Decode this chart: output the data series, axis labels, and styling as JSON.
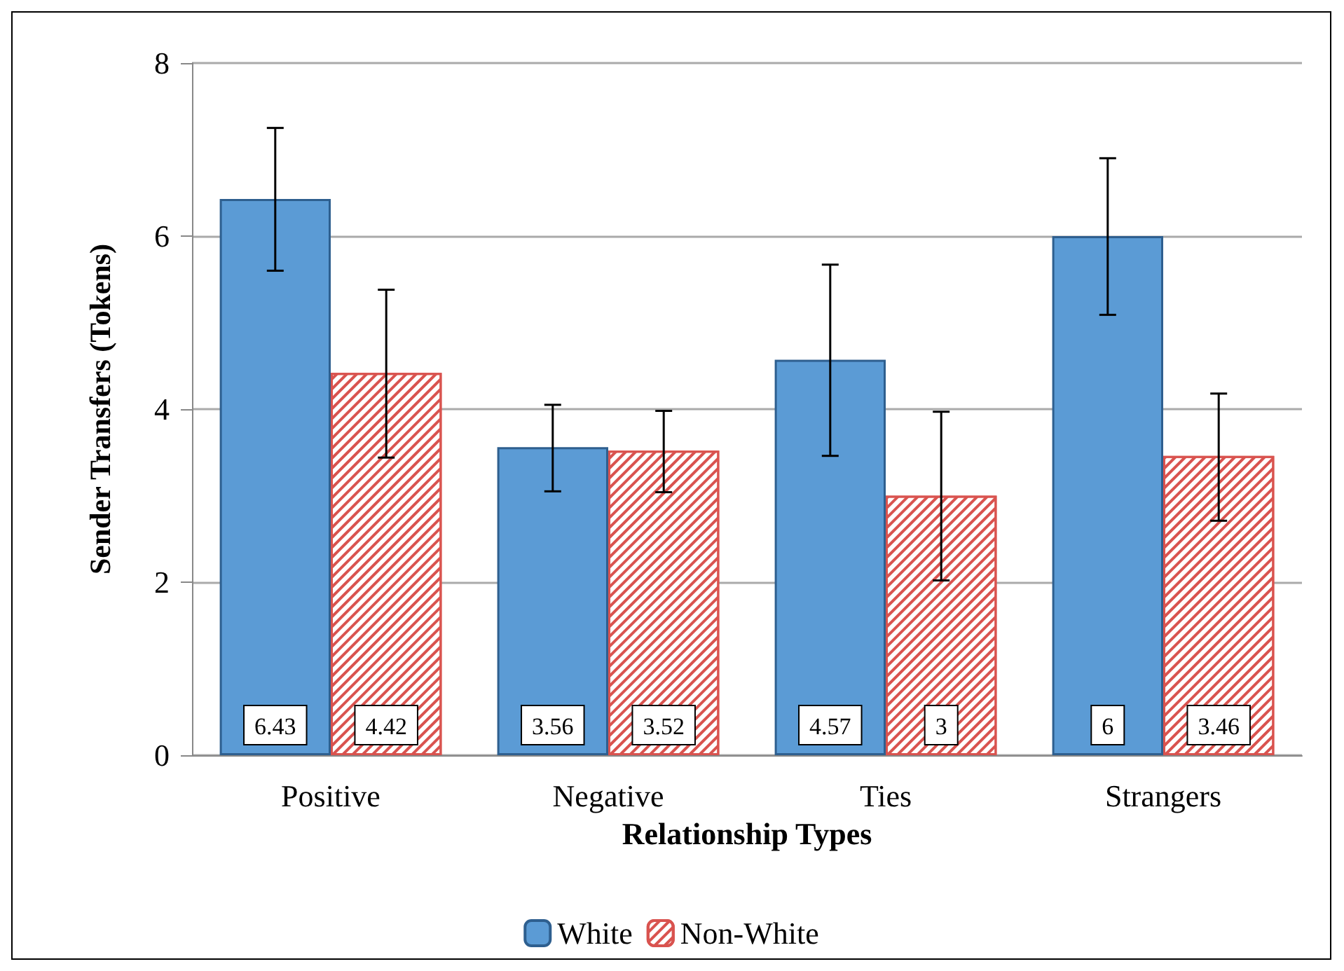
{
  "chart_data": {
    "type": "bar",
    "xlabel": "Relationship Types",
    "ylabel": "Sender Transfers (Tokens)",
    "categories": [
      "Positive",
      "Negative",
      "Ties",
      "Strangers"
    ],
    "series": [
      {
        "name": "White",
        "color": "#5b9bd5",
        "values": [
          6.43,
          3.56,
          4.57,
          6
        ],
        "errors": [
          [
            5.6,
            7.25
          ],
          [
            3.05,
            4.05
          ],
          [
            3.46,
            5.67
          ],
          [
            5.09,
            6.9
          ]
        ]
      },
      {
        "name": "Non-White",
        "color": "#d9534f",
        "values": [
          4.42,
          3.52,
          3,
          3.46
        ],
        "errors": [
          [
            3.44,
            5.38
          ],
          [
            3.04,
            3.98
          ],
          [
            2.02,
            3.97
          ],
          [
            2.71,
            4.18
          ]
        ]
      }
    ],
    "ylim": [
      0,
      8
    ],
    "yticks": [
      0,
      2,
      4,
      6,
      8
    ],
    "grid": "y",
    "legend": "bottom",
    "data_labels": true
  }
}
